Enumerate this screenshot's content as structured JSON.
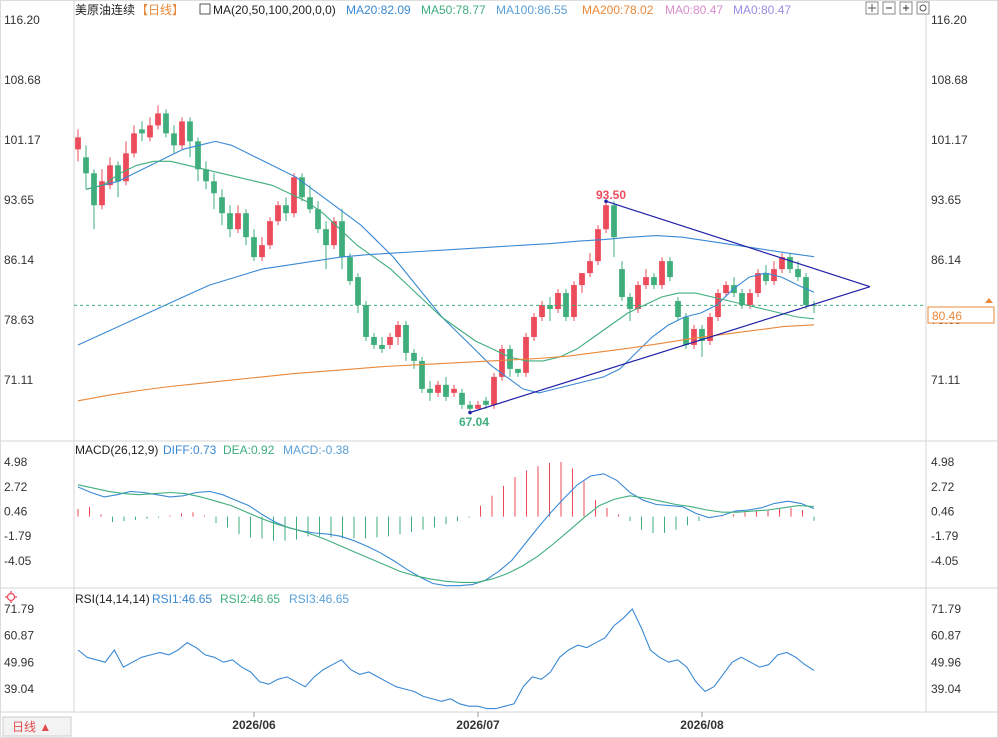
{
  "header": {
    "symbol": "美原油连续",
    "period_tag": "【日线】",
    "ma_title": "MA(20,50,100,200,0,0)",
    "ma20": "MA20:82.09",
    "ma50": "MA50:78.77",
    "ma100": "MA100:86.55",
    "ma200": "MA200:78.02",
    "ma0a": "MA0:80.47",
    "ma0b": "MA0:80.47",
    "toolbar_icons": [
      "move-icon",
      "zoom-out-icon",
      "zoom-in-icon",
      "settings-icon"
    ]
  },
  "macd_legend": {
    "title": "MACD(26,12,9)",
    "diff": "DIFF:0.73",
    "dea": "DEA:0.92",
    "macd": "MACD:-0.38"
  },
  "rsi_legend": {
    "title": "RSI(14,14,14)",
    "rsi1": "RSI1:46.65",
    "rsi2": "RSI2:46.65",
    "rsi3": "RSI3:46.65"
  },
  "price_axis": [
    "116.20",
    "108.68",
    "101.17",
    "93.65",
    "86.14",
    "78.63",
    "71.11"
  ],
  "macd_axis": [
    "4.98",
    "2.72",
    "0.46",
    "-1.79",
    "-4.05"
  ],
  "rsi_axis": [
    "71.79",
    "60.87",
    "49.96",
    "39.04"
  ],
  "date_axis": [
    "2026/06",
    "2026/07",
    "2026/08"
  ],
  "current_price": "80.46",
  "period_button": "日线 ▲",
  "colors": {
    "up": "#ec4b5b",
    "down": "#3fae7c",
    "ma20": "#3a89d4",
    "ma50": "#3fae7c",
    "ma100": "#3a89d4",
    "ma200": "#e9883a",
    "trend": "#1f1fa8",
    "current": "#e9883a",
    "rsi": "#3a89d4"
  },
  "chart_data": {
    "type": "candlestick",
    "x_labels": [
      "2026/06",
      "2026/07",
      "2026/08"
    ],
    "price_ylim": [
      63.6,
      116.2
    ],
    "annotations": [
      {
        "label": "93.50",
        "value": 93.5,
        "type": "high"
      },
      {
        "label": "67.04",
        "value": 67.04,
        "type": "low"
      }
    ],
    "candles": [
      [
        100.0,
        101.5,
        98.5,
        102.5
      ],
      [
        99.0,
        97.0,
        95.0,
        100.5
      ],
      [
        97.0,
        93.0,
        90.0,
        97.5
      ],
      [
        93.0,
        96.0,
        92.5,
        97.5
      ],
      [
        95.5,
        98.0,
        95.0,
        99.0
      ],
      [
        98.0,
        96.0,
        94.0,
        98.5
      ],
      [
        96.0,
        99.5,
        95.5,
        101.0
      ],
      [
        99.5,
        102.0,
        99.0,
        103.0
      ],
      [
        102.5,
        102.0,
        101.0,
        103.5
      ],
      [
        101.5,
        103.0,
        101.0,
        104.0
      ],
      [
        103.0,
        104.5,
        102.5,
        105.5
      ],
      [
        104.5,
        102.0,
        101.5,
        105.0
      ],
      [
        102.0,
        100.5,
        99.5,
        103.0
      ],
      [
        100.5,
        103.5,
        100.0,
        104.0
      ],
      [
        103.5,
        101.0,
        99.0,
        104.0
      ],
      [
        101.0,
        97.5,
        96.0,
        101.5
      ],
      [
        97.5,
        96.0,
        95.0,
        98.5
      ],
      [
        96.0,
        94.5,
        92.5,
        97.0
      ],
      [
        94.0,
        92.0,
        90.5,
        95.0
      ],
      [
        92.0,
        90.0,
        89.0,
        93.0
      ],
      [
        90.0,
        92.0,
        89.5,
        93.0
      ],
      [
        92.0,
        89.0,
        88.0,
        92.5
      ],
      [
        89.0,
        86.5,
        86.0,
        90.0
      ],
      [
        86.5,
        88.0,
        86.0,
        89.0
      ],
      [
        88.0,
        91.0,
        87.5,
        91.5
      ],
      [
        91.0,
        93.0,
        90.5,
        93.5
      ],
      [
        93.0,
        92.0,
        91.0,
        94.0
      ],
      [
        92.0,
        96.5,
        91.5,
        97.0
      ],
      [
        96.5,
        94.0,
        93.5,
        97.0
      ],
      [
        94.0,
        92.5,
        92.0,
        95.5
      ],
      [
        92.5,
        90.0,
        89.5,
        93.5
      ],
      [
        90.0,
        88.0,
        85.0,
        91.0
      ],
      [
        88.0,
        91.0,
        87.5,
        91.5
      ],
      [
        91.0,
        86.5,
        85.0,
        92.5
      ],
      [
        86.5,
        83.5,
        83.0,
        87.0
      ],
      [
        84.0,
        80.5,
        79.5,
        84.5
      ],
      [
        80.5,
        76.5,
        76.0,
        81.0
      ],
      [
        76.5,
        75.5,
        75.0,
        77.0
      ],
      [
        75.5,
        75.0,
        74.5,
        76.5
      ],
      [
        75.5,
        76.5,
        75.0,
        77.0
      ],
      [
        76.5,
        78.0,
        75.5,
        78.5
      ],
      [
        78.0,
        74.5,
        73.5,
        78.5
      ],
      [
        74.5,
        73.5,
        72.5,
        75.0
      ],
      [
        73.5,
        70.0,
        69.5,
        74.0
      ],
      [
        70.0,
        69.5,
        68.5,
        71.0
      ],
      [
        69.5,
        70.5,
        69.0,
        71.0
      ],
      [
        70.5,
        69.0,
        68.5,
        71.5
      ],
      [
        69.5,
        70.0,
        69.0,
        70.5
      ],
      [
        69.5,
        68.0,
        67.5,
        70.0
      ],
      [
        68.0,
        67.5,
        67.04,
        68.5
      ],
      [
        67.5,
        68.0,
        67.5,
        68.5
      ],
      [
        68.5,
        68.0,
        67.5,
        69.0
      ],
      [
        68.0,
        71.5,
        67.5,
        72.0
      ],
      [
        71.5,
        75.0,
        71.0,
        75.5
      ],
      [
        75.0,
        72.5,
        71.5,
        75.5
      ],
      [
        72.5,
        72.0,
        71.5,
        72.5
      ],
      [
        72.0,
        76.5,
        71.5,
        77.0
      ],
      [
        76.5,
        79.0,
        76.0,
        79.5
      ],
      [
        79.0,
        80.5,
        78.5,
        81.0
      ],
      [
        80.5,
        80.0,
        78.5,
        81.5
      ],
      [
        80.0,
        82.0,
        79.5,
        82.5
      ],
      [
        82.0,
        79.0,
        78.5,
        82.5
      ],
      [
        79.0,
        83.0,
        78.5,
        83.5
      ],
      [
        83.0,
        84.5,
        82.0,
        84.5
      ],
      [
        84.5,
        86.0,
        84.0,
        87.0
      ],
      [
        86.0,
        90.0,
        85.5,
        90.5
      ],
      [
        90.0,
        93.0,
        89.5,
        93.5
      ],
      [
        93.0,
        89.0,
        86.5,
        93.5
      ],
      [
        85.0,
        81.5,
        81.0,
        86.0
      ],
      [
        81.5,
        80.0,
        78.5,
        82.0
      ],
      [
        80.0,
        83.0,
        79.5,
        83.5
      ],
      [
        83.0,
        84.0,
        82.5,
        85.0
      ],
      [
        84.0,
        83.0,
        82.5,
        84.5
      ],
      [
        83.0,
        86.0,
        82.5,
        86.5
      ],
      [
        86.0,
        84.0,
        83.5,
        86.5
      ],
      [
        81.0,
        79.0,
        78.5,
        81.5
      ],
      [
        79.0,
        75.5,
        75.0,
        79.5
      ],
      [
        75.5,
        77.5,
        75.0,
        78.0
      ],
      [
        77.5,
        76.0,
        74.0,
        78.0
      ],
      [
        76.0,
        79.0,
        75.5,
        79.5
      ],
      [
        79.0,
        82.0,
        78.5,
        82.5
      ],
      [
        82.0,
        83.0,
        81.5,
        83.5
      ],
      [
        83.0,
        82.0,
        81.5,
        84.0
      ],
      [
        82.0,
        80.5,
        80.0,
        82.5
      ],
      [
        80.5,
        82.0,
        80.0,
        82.5
      ],
      [
        82.0,
        84.5,
        81.5,
        85.0
      ],
      [
        84.5,
        83.5,
        83.0,
        85.5
      ],
      [
        83.5,
        85.0,
        83.0,
        86.0
      ],
      [
        85.0,
        86.5,
        84.5,
        87.0
      ],
      [
        86.5,
        85.0,
        84.5,
        87.0
      ],
      [
        85.0,
        84.0,
        83.5,
        86.0
      ],
      [
        84.0,
        80.5,
        80.0,
        84.5
      ],
      [
        80.5,
        80.46,
        79.5,
        81.0
      ]
    ],
    "ma20": [
      95.0,
      95.5,
      96.0,
      97.0,
      98.0,
      99.0,
      100.0,
      100.5,
      101.0,
      100.5,
      99.5,
      98.5,
      97.5,
      96.5,
      95.0,
      93.5,
      92.0,
      90.5,
      88.5,
      86.5,
      84.0,
      81.5,
      79.0,
      77.0,
      75.0,
      73.0,
      71.5,
      70.0,
      69.5,
      70.0,
      70.5,
      71.0,
      71.5,
      72.5,
      74.5,
      76.5,
      78.0,
      79.0,
      79.5,
      80.5,
      82.5,
      84.0,
      84.5,
      84.0,
      83.0,
      82.09
    ],
    "ma50": [
      95.0,
      95.5,
      97.0,
      98.0,
      98.5,
      98.5,
      98.0,
      97.5,
      97.0,
      96.5,
      96.0,
      95.5,
      94.5,
      93.5,
      92.0,
      90.0,
      88.0,
      86.5,
      85.0,
      83.0,
      81.0,
      79.0,
      77.5,
      76.0,
      75.0,
      74.0,
      73.5,
      73.5,
      74.0,
      75.0,
      76.5,
      78.0,
      79.5,
      80.5,
      81.5,
      82.0,
      82.0,
      81.5,
      81.0,
      80.5,
      80.0,
      79.5,
      79.0,
      78.77
    ],
    "ma100": [
      75.5,
      77.0,
      78.5,
      80.0,
      81.5,
      83.0,
      84.0,
      85.0,
      85.5,
      86.0,
      86.5,
      86.8,
      87.0,
      87.2,
      87.4,
      87.6,
      87.8,
      88.0,
      88.2,
      88.5,
      88.7,
      89.0,
      89.2,
      89.0,
      88.5,
      88.0,
      87.5,
      87.0,
      86.55
    ],
    "ma200": [
      68.5,
      69.2,
      69.8,
      70.3,
      70.7,
      71.1,
      71.5,
      71.9,
      72.2,
      72.5,
      72.8,
      73.0,
      73.2,
      73.4,
      73.6,
      73.8,
      74.1,
      74.6,
      75.1,
      75.7,
      76.3,
      76.8,
      77.3,
      77.8,
      78.02
    ],
    "trendlines": [
      {
        "from": {
          "index": 66,
          "value": 93.5
        },
        "to": {
          "index": 99,
          "value": 82.8
        }
      },
      {
        "from": {
          "index": 49,
          "value": 67.04
        },
        "to": {
          "index": 99,
          "value": 82.8
        }
      }
    ],
    "current_value": 80.46,
    "macd": {
      "ylim": [
        -6.31,
        4.98
      ],
      "diff": [
        2.7,
        2.2,
        1.8,
        2.0,
        2.3,
        2.2,
        2.0,
        1.8,
        1.9,
        2.2,
        2.3,
        2.0,
        1.5,
        1.0,
        0.2,
        -0.5,
        -1.0,
        -1.3,
        -1.5,
        -1.6,
        -1.8,
        -2.2,
        -2.7,
        -3.3,
        -4.0,
        -4.8,
        -5.5,
        -6.1,
        -6.3,
        -6.3,
        -6.2,
        -5.8,
        -5.0,
        -4.0,
        -2.5,
        -1.0,
        0.4,
        1.7,
        2.9,
        3.7,
        3.9,
        3.3,
        2.2,
        1.5,
        1.1,
        1.0,
        0.9,
        0.3,
        -0.1,
        0.1,
        0.5,
        0.6,
        0.8,
        1.2,
        1.4,
        1.2,
        0.73
      ],
      "dea": [
        2.9,
        2.6,
        2.3,
        2.1,
        2.0,
        2.1,
        2.2,
        2.1,
        1.8,
        1.4,
        1.0,
        0.4,
        -0.2,
        -0.7,
        -1.1,
        -1.5,
        -2.0,
        -2.6,
        -3.2,
        -3.8,
        -4.4,
        -5.0,
        -5.4,
        -5.7,
        -5.9,
        -6.0,
        -6.0,
        -5.7,
        -5.2,
        -4.5,
        -3.6,
        -2.5,
        -1.3,
        -0.1,
        1.0,
        1.6,
        1.9,
        1.7,
        1.4,
        1.1,
        0.9,
        0.6,
        0.4,
        0.4,
        0.5,
        0.6,
        0.8,
        1.0,
        0.92
      ],
      "hist": [
        0.7,
        0.9,
        0.2,
        -0.5,
        -0.4,
        -0.3,
        -0.2,
        -0.1,
        0.1,
        0.3,
        0.4,
        0.1,
        -0.6,
        -1.0,
        -1.6,
        -1.9,
        -2.0,
        -2.2,
        -2.2,
        -2.1,
        -1.8,
        -1.8,
        -1.9,
        -2.0,
        -2.0,
        -2.0,
        -1.9,
        -1.8,
        -1.6,
        -1.4,
        -1.2,
        -1.0,
        -0.7,
        -0.4,
        -0.1,
        1.0,
        1.9,
        2.8,
        3.6,
        4.2,
        4.6,
        4.9,
        4.98,
        4.4,
        3.2,
        1.5,
        0.8,
        0.2,
        -0.4,
        -1.2,
        -1.5,
        -1.5,
        -1.2,
        -0.8,
        -0.4,
        -0.1,
        0.1,
        0.2,
        0.4,
        0.5,
        0.6,
        0.7,
        0.8,
        0.6,
        -0.38
      ]
    },
    "rsi": {
      "ylim": [
        30.0,
        71.79
      ],
      "values": [
        55,
        52,
        51,
        50,
        55,
        48,
        50,
        52,
        53,
        54,
        53,
        55,
        58,
        56,
        53,
        52,
        50,
        51,
        48,
        46,
        42,
        41,
        43,
        44,
        42,
        40,
        44,
        47,
        49,
        51,
        47,
        45,
        46,
        44,
        42,
        40,
        39,
        38,
        36,
        35,
        34,
        35,
        33,
        32,
        32,
        31,
        31,
        32,
        33,
        40,
        44,
        43,
        46,
        52,
        55,
        57,
        56,
        58,
        60,
        65,
        68,
        71.79,
        64,
        55,
        52,
        50,
        51,
        48,
        42,
        38,
        40,
        45,
        50,
        52,
        50,
        48,
        49,
        53,
        54,
        52,
        49,
        46.65
      ]
    }
  }
}
